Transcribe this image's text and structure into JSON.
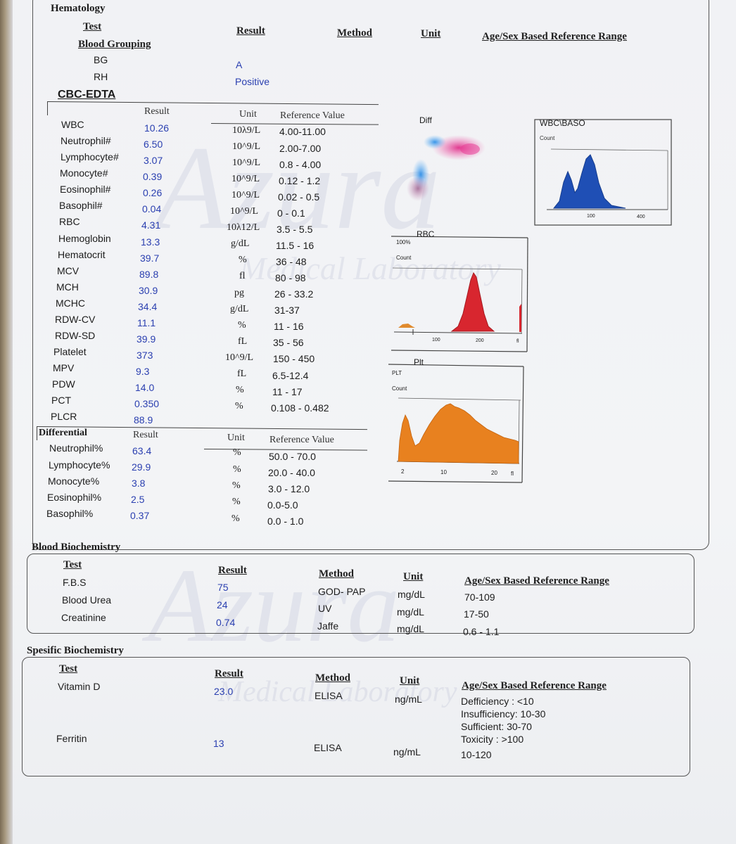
{
  "hematology": {
    "section_title": "Hematology",
    "headers": {
      "test": "Test",
      "result": "Result",
      "method": "Method",
      "unit": "Unit",
      "range": "Age/Sex Based Reference Range"
    },
    "blood_grouping": {
      "title": "Blood Grouping",
      "rows": [
        {
          "name": "BG",
          "result": "A"
        },
        {
          "name": "RH",
          "result": "Positive"
        }
      ]
    }
  },
  "cbc": {
    "title": "CBC-EDTA",
    "col_result": "Result",
    "col_unit": "Unit",
    "col_ref": "Reference Value",
    "rows": [
      {
        "name": "WBC",
        "result": "10.26",
        "unit": "10λ9/L",
        "ref": "4.00-11.00"
      },
      {
        "name": "Neutrophil#",
        "result": "6.50",
        "unit": "10^9/L",
        "ref": "2.00-7.00"
      },
      {
        "name": "Lymphocyte#",
        "result": "3.07",
        "unit": "10^9/L",
        "ref": "0.8 - 4.00"
      },
      {
        "name": "Monocyte#",
        "result": "0.39",
        "unit": "10^9/L",
        "ref": "0.12 - 1.2"
      },
      {
        "name": "Eosinophil#",
        "result": "0.26",
        "unit": "10^9/L",
        "ref": "0.02 - 0.5"
      },
      {
        "name": "Basophil#",
        "result": "0.04",
        "unit": "10^9/L",
        "ref": "0 - 0.1"
      },
      {
        "name": "RBC",
        "result": "4.31",
        "unit": "10λ12/L",
        "ref": "3.5 - 5.5"
      },
      {
        "name": "Hemoglobin",
        "result": "13.3",
        "unit": "g/dL",
        "ref": "11.5 - 16"
      },
      {
        "name": "Hematocrit",
        "result": "39.7",
        "unit": "%",
        "ref": "36 - 48"
      },
      {
        "name": "MCV",
        "result": "89.8",
        "unit": "fl",
        "ref": "80 - 98"
      },
      {
        "name": "MCH",
        "result": "30.9",
        "unit": "pg",
        "ref": "26 - 33.2"
      },
      {
        "name": "MCHC",
        "result": "34.4",
        "unit": "g/dL",
        "ref": "31-37"
      },
      {
        "name": "RDW-CV",
        "result": "11.1",
        "unit": "%",
        "ref": "11 - 16"
      },
      {
        "name": "RDW-SD",
        "result": "39.9",
        "unit": "fL",
        "ref": "35 - 56"
      },
      {
        "name": "Platelet",
        "result": "373",
        "unit": "10^9/L",
        "ref": "150 - 450"
      },
      {
        "name": "MPV",
        "result": "9.3",
        "unit": "fL",
        "ref": "6.5-12.4"
      },
      {
        "name": "PDW",
        "result": "14.0",
        "unit": "%",
        "ref": "11 - 17"
      },
      {
        "name": "PCT",
        "result": "0.350",
        "unit": "%",
        "ref": "0.108 - 0.482"
      },
      {
        "name": "PLCR",
        "result": "88.9",
        "unit": "",
        "ref": ""
      }
    ]
  },
  "differential": {
    "title": "Differential",
    "col_result": "Result",
    "col_unit": "Unit",
    "col_ref": "Reference Value",
    "rows": [
      {
        "name": "Neutrophil%",
        "result": "63.4",
        "unit": "%",
        "ref": "50.0 - 70.0"
      },
      {
        "name": "Lymphocyte%",
        "result": "29.9",
        "unit": "%",
        "ref": "20.0 - 40.0"
      },
      {
        "name": "Monocyte%",
        "result": "3.8",
        "unit": "%",
        "ref": "3.0 - 12.0"
      },
      {
        "name": "Eosinophil%",
        "result": "2.5",
        "unit": "%",
        "ref": "0.0-5.0"
      },
      {
        "name": "Basophil%",
        "result": "0.37",
        "unit": "%",
        "ref": "0.0 - 1.0"
      }
    ]
  },
  "graphs": {
    "diff": {
      "title": "Diff"
    },
    "wbc_baso": {
      "title": "WBC\\BASO",
      "count": "Count",
      "ticks": [
        "100",
        "400"
      ]
    },
    "rbc": {
      "title": "RBC",
      "y_top": "100%",
      "count": "Count",
      "ticks": [
        "100",
        "200",
        "fl"
      ]
    },
    "plt": {
      "title": "Plt",
      "y_top": "PLT",
      "count": "Count",
      "ticks": [
        "2",
        "10",
        "20",
        "fl"
      ]
    }
  },
  "blood_biochemistry": {
    "title": "Blood Biochemistry",
    "headers": {
      "test": "Test",
      "result": "Result",
      "method": "Method",
      "unit": "Unit",
      "range": "Age/Sex Based Reference Range"
    },
    "rows": [
      {
        "name": "F.B.S",
        "result": "75",
        "method": "GOD- PAP",
        "unit": "mg/dL",
        "range": "70-109"
      },
      {
        "name": "Blood Urea",
        "result": "24",
        "method": "UV",
        "unit": "mg/dL",
        "range": "17-50"
      },
      {
        "name": "Creatinine",
        "result": "0.74",
        "method": "Jaffe",
        "unit": "mg/dL",
        "range": "0.6 - 1.1"
      }
    ]
  },
  "specific_biochemistry": {
    "title": "Spesific Biochemistry",
    "headers": {
      "test": "Test",
      "result": "Result",
      "method": "Method",
      "unit": "Unit",
      "range": "Age/Sex Based Reference Range"
    },
    "vitamin_d": {
      "name": "Vitamin D",
      "result": "23.0",
      "method": "ELISA",
      "unit": "ng/mL",
      "ranges": [
        "Defficiency : <10",
        "Insufficiency: 10-30",
        "Sufficient: 30-70",
        "Toxicity : >100"
      ]
    },
    "ferritin": {
      "name": "Ferritin",
      "result": "13",
      "method": "ELISA",
      "unit": "ng/mL",
      "range": "10-120"
    }
  },
  "watermark": {
    "brand": "Azura",
    "subtitle": "Medical Laboratory"
  }
}
